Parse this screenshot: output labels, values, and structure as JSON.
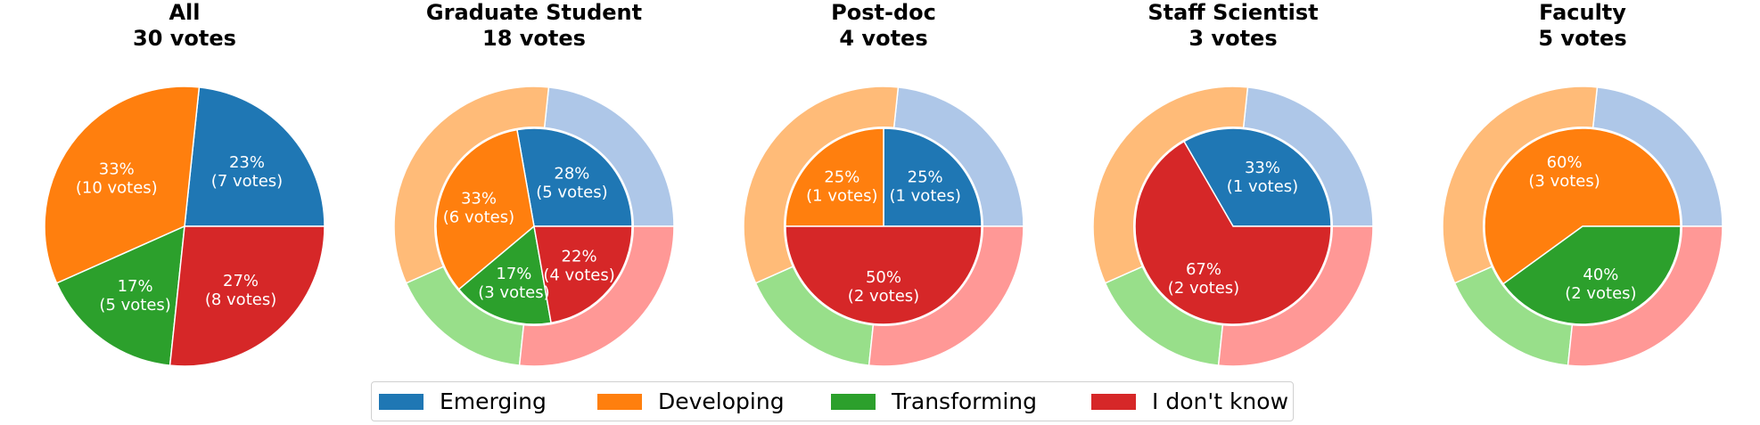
{
  "colors": {
    "Emerging": {
      "main": "#1f77b4",
      "light": "#aec7e8"
    },
    "Developing": {
      "main": "#ff7f0e",
      "light": "#ffbb78"
    },
    "Transforming": {
      "main": "#2ca02c",
      "light": "#98df8a"
    },
    "I don't know": {
      "main": "#d62728",
      "light": "#ff9896"
    }
  },
  "legend": {
    "placement": "bottom-center",
    "entries": [
      "Emerging",
      "Developing",
      "Transforming",
      "I don't know"
    ]
  },
  "chart_data": [
    {
      "type": "pie",
      "title_line1": "All",
      "title_line2": "30 votes",
      "categories": [
        "Emerging",
        "Developing",
        "Transforming",
        "I don't know"
      ],
      "values": [
        7,
        10,
        5,
        8
      ],
      "labels": [
        {
          "category": "Emerging",
          "pct": "23%",
          "votes": "(7 votes)"
        },
        {
          "category": "Developing",
          "pct": "33%",
          "votes": "(10 votes)"
        },
        {
          "category": "Transforming",
          "pct": "17%",
          "votes": "(5 votes)"
        },
        {
          "category": "I don't know",
          "pct": "27%",
          "votes": "(8 votes)"
        }
      ],
      "outer_ring": null
    },
    {
      "type": "pie",
      "title_line1": "Graduate Student",
      "title_line2": "18 votes",
      "categories": [
        "Emerging",
        "Developing",
        "Transforming",
        "I don't know"
      ],
      "values": [
        5,
        6,
        3,
        4
      ],
      "labels": [
        {
          "category": "Emerging",
          "pct": "28%",
          "votes": "(5 votes)"
        },
        {
          "category": "Developing",
          "pct": "33%",
          "votes": "(6 votes)"
        },
        {
          "category": "Transforming",
          "pct": "17%",
          "votes": "(3 votes)"
        },
        {
          "category": "I don't know",
          "pct": "22%",
          "votes": "(4 votes)"
        }
      ],
      "outer_ring": [
        7,
        10,
        5,
        8
      ]
    },
    {
      "type": "pie",
      "title_line1": "Post-doc",
      "title_line2": "4 votes",
      "categories": [
        "Emerging",
        "Developing",
        "Transforming",
        "I don't know"
      ],
      "values": [
        1,
        1,
        0,
        2
      ],
      "labels": [
        {
          "category": "Emerging",
          "pct": "25%",
          "votes": "(1 votes)"
        },
        {
          "category": "Developing",
          "pct": "25%",
          "votes": "(1 votes)"
        },
        {
          "category": "I don't know",
          "pct": "50%",
          "votes": "(2 votes)"
        }
      ],
      "outer_ring": [
        7,
        10,
        5,
        8
      ]
    },
    {
      "type": "pie",
      "title_line1": "Staff Scientist",
      "title_line2": "3 votes",
      "categories": [
        "Emerging",
        "Developing",
        "Transforming",
        "I don't know"
      ],
      "values": [
        1,
        0,
        0,
        2
      ],
      "labels": [
        {
          "category": "Emerging",
          "pct": "33%",
          "votes": "(1 votes)"
        },
        {
          "category": "I don't know",
          "pct": "67%",
          "votes": "(2 votes)"
        }
      ],
      "outer_ring": [
        7,
        10,
        5,
        8
      ]
    },
    {
      "type": "pie",
      "title_line1": "Faculty",
      "title_line2": "5 votes",
      "categories": [
        "Emerging",
        "Developing",
        "Transforming",
        "I don't know"
      ],
      "values": [
        0,
        3,
        2,
        0
      ],
      "labels": [
        {
          "category": "Developing",
          "pct": "60%",
          "votes": "(3 votes)"
        },
        {
          "category": "Transforming",
          "pct": "40%",
          "votes": "(2 votes)"
        }
      ],
      "outer_ring": [
        7,
        10,
        5,
        8
      ]
    }
  ]
}
